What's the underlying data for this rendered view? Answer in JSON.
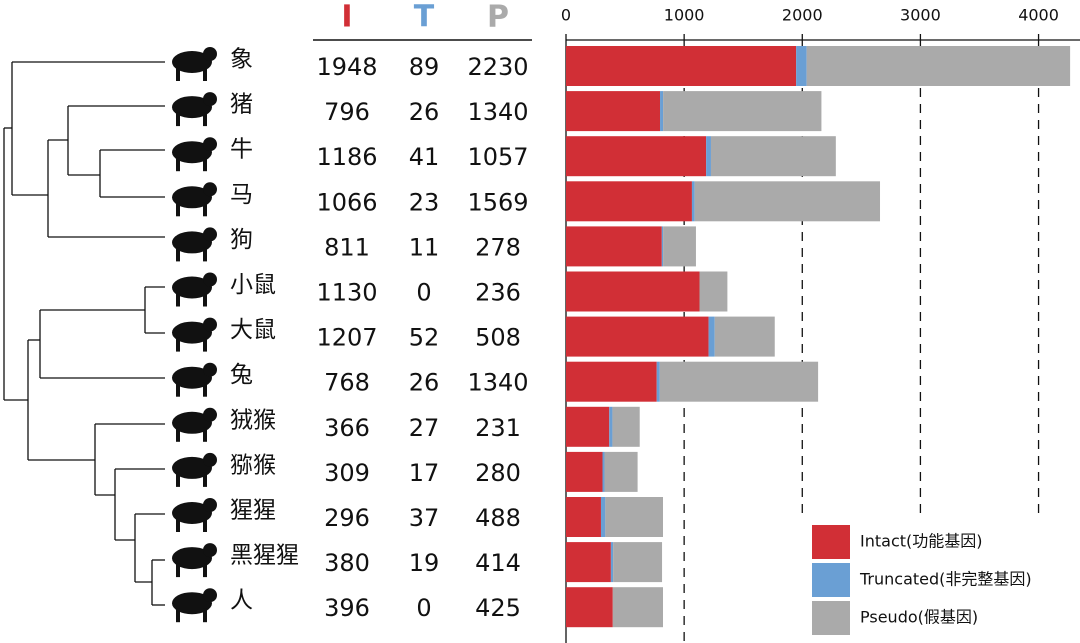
{
  "chart_data": {
    "type": "stacked-barh",
    "column_headers": [
      "I",
      "T",
      "P"
    ],
    "categories": [
      "象",
      "猪",
      "牛",
      "马",
      "狗",
      "小鼠",
      "大鼠",
      "兔",
      "狨猴",
      "猕猴",
      "猩猩",
      "黑猩猩",
      "人"
    ],
    "series": [
      {
        "name": "Intact(功能基因)",
        "color": "#d12f36",
        "values": [
          1948,
          796,
          1186,
          1066,
          811,
          1130,
          1207,
          768,
          366,
          309,
          296,
          380,
          396
        ]
      },
      {
        "name": "Truncated(非完整基因)",
        "color": "#6a9fd4",
        "values": [
          89,
          26,
          41,
          23,
          11,
          0,
          52,
          26,
          27,
          17,
          37,
          19,
          0
        ]
      },
      {
        "name": "Pseudo(假基因)",
        "color": "#aaaaaa",
        "values": [
          2230,
          1340,
          1057,
          1569,
          278,
          236,
          508,
          1340,
          231,
          280,
          488,
          414,
          425
        ]
      }
    ],
    "xlim": [
      0,
      4300
    ],
    "xticks": [
      0,
      1000,
      2000,
      3000,
      4000
    ],
    "grid": true,
    "legend": "lower right"
  }
}
